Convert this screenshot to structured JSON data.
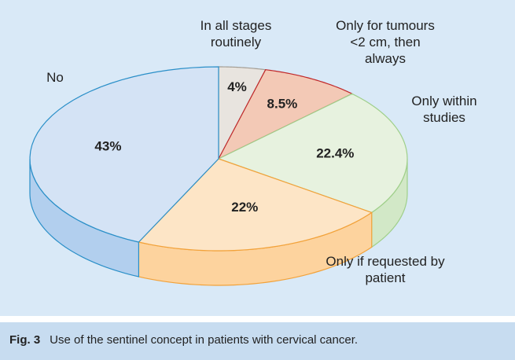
{
  "chart_data": {
    "type": "pie3d",
    "categories": [
      "In all stages routinely",
      "Only for tumours <2 cm, then always",
      "Only within studies",
      "Only if requested by patient",
      "No"
    ],
    "values": [
      4,
      8.5,
      22.4,
      22,
      43
    ],
    "value_labels": [
      "4%",
      "8.5%",
      "22.4%",
      "22%",
      "43%"
    ],
    "colors": [
      "#e8e4df",
      "#f3c9b6",
      "#e7f2df",
      "#fde5c6",
      "#d4e3f5"
    ],
    "side_colors": [
      "#cfc9c1",
      "#e8a990",
      "#d2e8c7",
      "#fdd39e",
      "#b2cfee"
    ],
    "edge_colors": [
      "#a39d94",
      "#c0282a",
      "#9fcf8a",
      "#f2a23a",
      "#2a8fc8"
    ]
  },
  "caption": {
    "label": "Fig. 3",
    "text": "Use of the sentinel concept in patients with cervical cancer."
  }
}
